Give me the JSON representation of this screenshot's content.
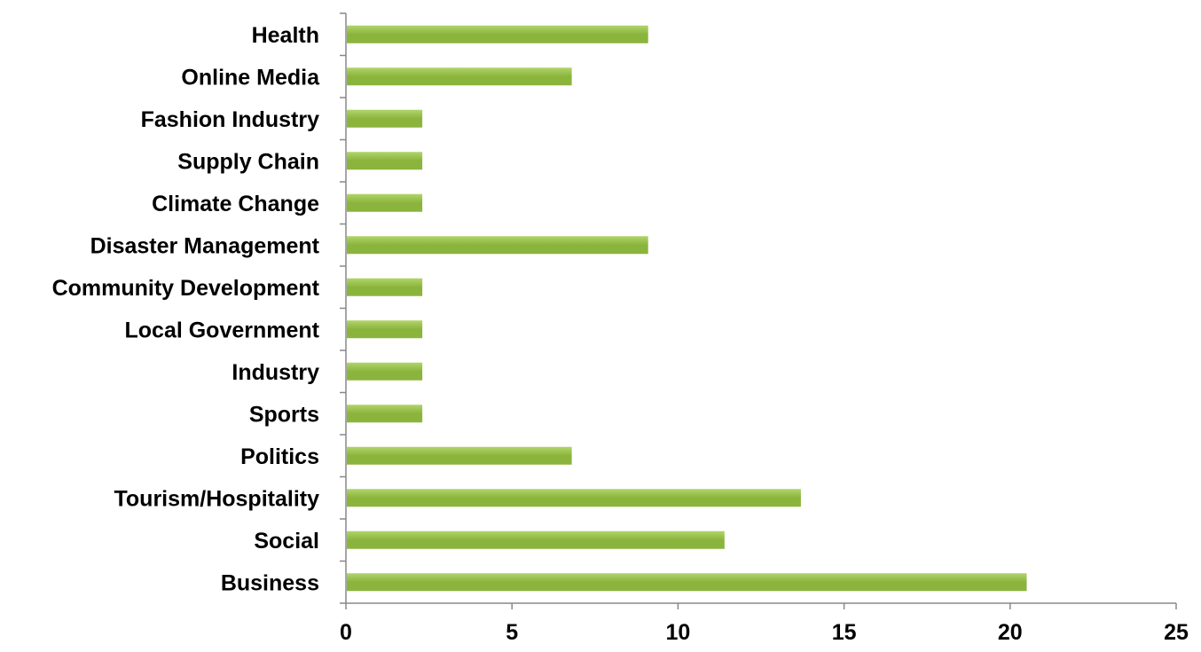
{
  "chart_data": {
    "type": "bar",
    "orientation": "horizontal",
    "categories": [
      "Health",
      "Online Media",
      "Fashion Industry",
      "Supply Chain",
      "Climate Change",
      "Disaster Management",
      "Community Development",
      "Local Government",
      "Industry",
      "Sports",
      "Politics",
      "Tourism/Hospitality",
      "Social",
      "Business"
    ],
    "values": [
      9.1,
      6.8,
      2.3,
      2.3,
      2.3,
      9.1,
      2.3,
      2.3,
      2.3,
      2.3,
      6.8,
      13.7,
      11.4,
      20.5
    ],
    "xlim": [
      0,
      25
    ],
    "xticks": [
      "0",
      "5",
      "10",
      "15",
      "20",
      "25"
    ],
    "title": "",
    "xlabel": "",
    "ylabel": "",
    "grid": false,
    "legend": "none",
    "bar_color": "#8bb43c",
    "bar_color_light": "#b0d56a"
  }
}
